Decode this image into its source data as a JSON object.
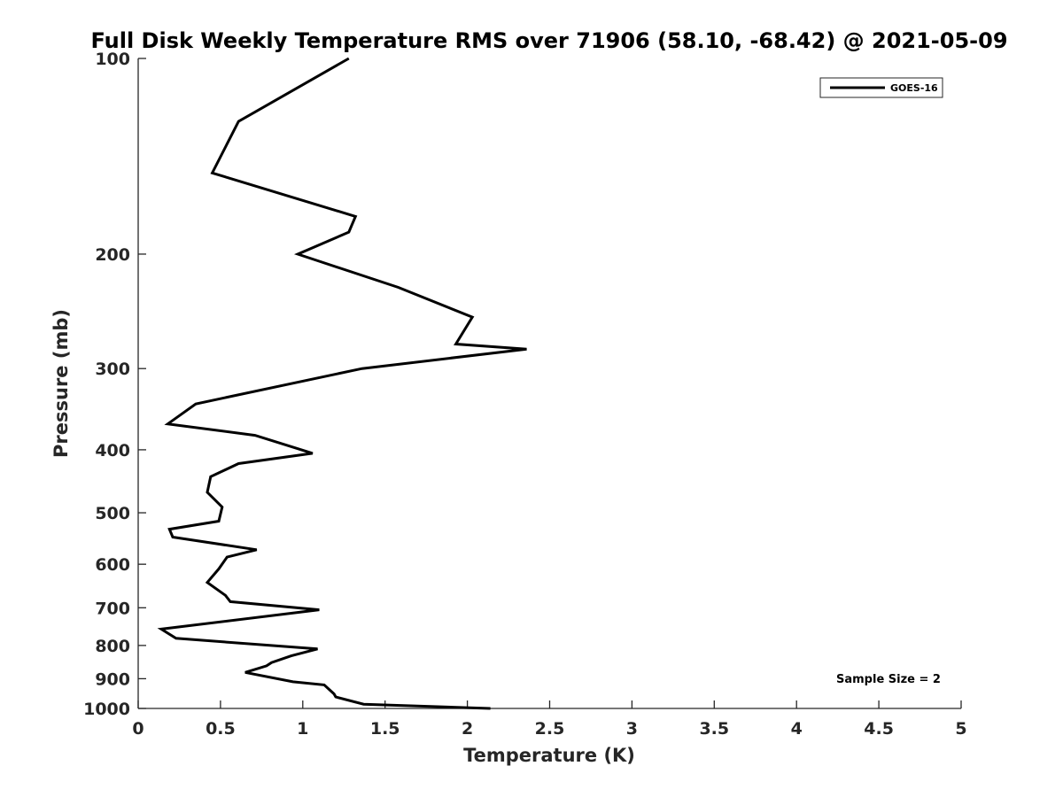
{
  "chart_data": {
    "type": "line",
    "title": "Full Disk Weekly Temperature RMS over 71906 (58.10, -68.42) @ 2021-05-09",
    "xlabel": "Temperature (K)",
    "ylabel": "Pressure (mb)",
    "xlim": [
      0,
      5
    ],
    "ylim": [
      100,
      1000
    ],
    "y_scale": "log",
    "y_reversed": true,
    "x_ticks": [
      "0",
      "0.5",
      "1",
      "1.5",
      "2",
      "2.5",
      "3",
      "3.5",
      "4",
      "4.5",
      "5"
    ],
    "y_ticks": [
      "100",
      "200",
      "300",
      "400",
      "500",
      "600",
      "700",
      "800",
      "900",
      "1000"
    ],
    "grid": false,
    "legend_position": "top-right",
    "series": [
      {
        "name": "GOES-16",
        "color": "#000000",
        "x": [
          1.28,
          0.61,
          0.45,
          1.32,
          1.28,
          0.97,
          1.58,
          2.03,
          1.93,
          2.36,
          1.36,
          0.35,
          0.18,
          0.71,
          1.06,
          0.61,
          0.44,
          0.42,
          0.51,
          0.49,
          0.19,
          0.21,
          0.72,
          0.54,
          0.49,
          0.42,
          0.53,
          0.56,
          1.1,
          0.14,
          0.23,
          1.09,
          0.93,
          0.81,
          0.78,
          0.65,
          0.94,
          1.13,
          1.19,
          1.2,
          1.37,
          2.14
        ],
        "y": [
          100,
          125,
          150,
          175,
          185,
          200,
          225,
          250,
          275,
          280,
          300,
          340,
          365,
          380,
          405,
          420,
          440,
          465,
          490,
          515,
          530,
          545,
          570,
          585,
          610,
          640,
          670,
          685,
          705,
          755,
          780,
          810,
          830,
          850,
          860,
          880,
          910,
          920,
          950,
          960,
          985,
          1000
        ]
      }
    ],
    "annotation": "Sample Size = 2"
  }
}
